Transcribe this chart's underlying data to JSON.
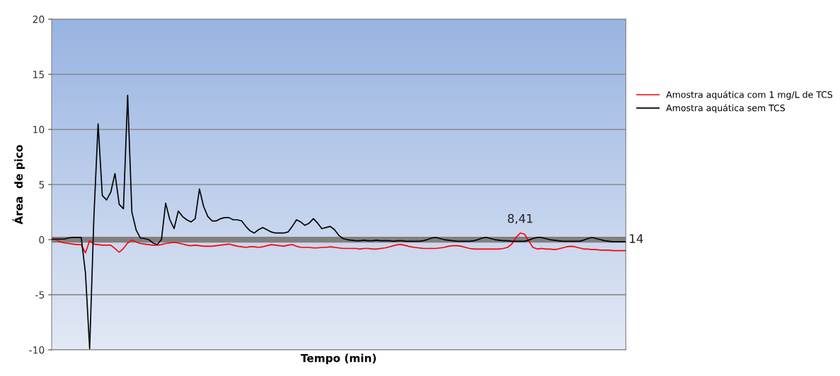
{
  "chart_data": {
    "type": "line",
    "xlabel": "Tempo (min)",
    "ylabel": "Área  de pico",
    "categories": [
      null,
      null,
      null,
      null,
      null,
      null,
      null,
      null,
      null,
      null,
      null,
      null,
      null,
      null,
      null,
      null,
      null,
      null,
      null,
      null,
      null,
      null,
      null,
      null,
      null,
      null,
      null,
      null,
      null,
      null,
      null,
      null,
      null,
      null,
      null,
      null,
      null,
      null,
      null,
      null,
      null,
      null,
      null,
      null,
      null,
      null,
      null,
      null,
      null,
      null,
      null,
      null,
      null,
      null,
      null,
      null,
      null,
      null,
      null,
      null,
      null,
      null,
      null,
      null,
      null,
      null,
      null,
      null,
      null,
      null,
      null,
      null,
      null,
      null,
      null,
      null,
      null,
      null,
      null,
      null,
      null,
      null,
      null,
      null,
      null,
      null,
      null,
      null,
      null,
      null,
      null,
      null,
      null,
      null,
      null,
      null,
      null,
      null,
      null,
      null,
      null,
      null,
      null,
      null,
      null,
      null,
      null,
      null,
      null,
      null,
      null,
      null,
      null,
      null,
      null,
      null,
      null,
      null,
      null,
      null,
      null,
      null,
      null,
      null,
      null,
      null,
      null,
      null,
      null,
      null,
      null,
      null,
      null,
      null,
      null,
      null,
      null
    ],
    "series": [
      {
        "name": "Amostra aquática com 1 mg/L de TCS",
        "color": "#ff0000",
        "values": [
          0.05,
          0,
          -0.2,
          -0.3,
          -0.35,
          -0.4,
          -0.45,
          -0.45,
          -1.2,
          -0.1,
          -0.4,
          -0.45,
          -0.5,
          -0.5,
          -0.5,
          -0.8,
          -1.15,
          -0.8,
          -0.3,
          -0.05,
          -0.2,
          -0.35,
          -0.4,
          -0.45,
          -0.5,
          -0.5,
          -0.45,
          -0.35,
          -0.3,
          -0.25,
          -0.3,
          -0.4,
          -0.5,
          -0.55,
          -0.5,
          -0.55,
          -0.6,
          -0.6,
          -0.6,
          -0.55,
          -0.5,
          -0.45,
          -0.4,
          -0.5,
          -0.6,
          -0.65,
          -0.7,
          -0.65,
          -0.65,
          -0.7,
          -0.65,
          -0.55,
          -0.45,
          -0.5,
          -0.55,
          -0.6,
          -0.5,
          -0.45,
          -0.6,
          -0.7,
          -0.7,
          -0.7,
          -0.75,
          -0.75,
          -0.7,
          -0.7,
          -0.65,
          -0.7,
          -0.75,
          -0.8,
          -0.8,
          -0.8,
          -0.8,
          -0.85,
          -0.8,
          -0.8,
          -0.85,
          -0.85,
          -0.8,
          -0.75,
          -0.65,
          -0.55,
          -0.45,
          -0.45,
          -0.55,
          -0.65,
          -0.7,
          -0.75,
          -0.8,
          -0.8,
          -0.8,
          -0.8,
          -0.75,
          -0.7,
          -0.6,
          -0.55,
          -0.55,
          -0.6,
          -0.7,
          -0.8,
          -0.85,
          -0.85,
          -0.85,
          -0.85,
          -0.85,
          -0.85,
          -0.85,
          -0.8,
          -0.7,
          -0.4,
          0.2,
          0.6,
          0.5,
          -0.1,
          -0.7,
          -0.85,
          -0.8,
          -0.85,
          -0.85,
          -0.9,
          -0.85,
          -0.75,
          -0.65,
          -0.6,
          -0.65,
          -0.75,
          -0.85,
          -0.85,
          -0.9,
          -0.9,
          -0.95,
          -0.95,
          -0.95,
          -1.0,
          -1.0,
          -1.0,
          -1.0
        ]
      },
      {
        "name": "Amostra aquática sem TCS",
        "color": "#000000",
        "values": [
          0.05,
          0.05,
          0.05,
          0.05,
          0.15,
          0.2,
          0.2,
          0.2,
          -3,
          -9.9,
          2.0,
          10.5,
          4.0,
          3.6,
          4.3,
          6.0,
          3.2,
          2.8,
          13.1,
          2.5,
          0.9,
          0.15,
          0.1,
          0.0,
          -0.3,
          -0.45,
          0.0,
          3.3,
          1.8,
          1.0,
          2.6,
          2.1,
          1.8,
          1.6,
          1.9,
          4.6,
          3.0,
          2.1,
          1.7,
          1.7,
          1.9,
          2.0,
          2.0,
          1.8,
          1.8,
          1.7,
          1.2,
          0.8,
          0.6,
          0.9,
          1.1,
          0.9,
          0.7,
          0.6,
          0.6,
          0.6,
          0.7,
          1.2,
          1.8,
          1.6,
          1.3,
          1.5,
          1.9,
          1.5,
          1.0,
          1.1,
          1.2,
          0.9,
          0.4,
          0.1,
          0.0,
          -0.05,
          -0.1,
          -0.1,
          -0.05,
          -0.1,
          -0.1,
          -0.05,
          -0.1,
          -0.1,
          -0.1,
          -0.15,
          -0.1,
          -0.1,
          -0.15,
          -0.15,
          -0.15,
          -0.15,
          -0.1,
          0.0,
          0.15,
          0.2,
          0.1,
          0.0,
          -0.05,
          -0.1,
          -0.15,
          -0.15,
          -0.15,
          -0.15,
          -0.1,
          0.0,
          0.15,
          0.2,
          0.1,
          0.0,
          -0.05,
          -0.1,
          -0.1,
          -0.15,
          -0.15,
          -0.15,
          -0.15,
          -0.05,
          0.1,
          0.2,
          0.2,
          0.1,
          0.0,
          -0.05,
          -0.1,
          -0.15,
          -0.15,
          -0.15,
          -0.15,
          -0.15,
          -0.05,
          0.1,
          0.2,
          0.1,
          0.0,
          -0.1,
          -0.15,
          -0.2,
          -0.2,
          -0.2,
          -0.2
        ]
      }
    ],
    "ylim": [
      -10,
      20
    ],
    "yticks": [
      -10,
      -5,
      0,
      5,
      10,
      15,
      20
    ],
    "ref_lines": [
      {
        "axis": "y",
        "value": 0,
        "color": "#808080"
      }
    ],
    "annotations": [
      "8,41",
      "14"
    ],
    "grid": "y",
    "legend": "right",
    "marker": "none",
    "line_style": "solid",
    "tick_labels": "y"
  }
}
